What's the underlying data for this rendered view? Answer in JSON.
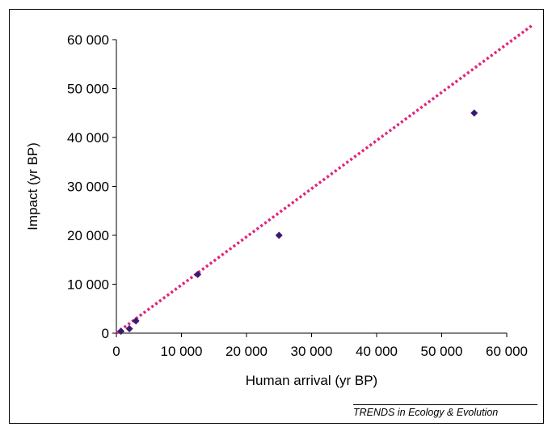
{
  "chart_data": {
    "type": "scatter",
    "xlabel": "Human arrival (yr BP)",
    "ylabel": "Impact (yr BP)",
    "xlim": [
      0,
      60000
    ],
    "ylim": [
      0,
      60000
    ],
    "xticks": [
      0,
      10000,
      20000,
      30000,
      40000,
      50000,
      60000
    ],
    "yticks": [
      0,
      10000,
      20000,
      30000,
      40000,
      50000,
      60000
    ],
    "xtick_labels": [
      "0",
      "10 000",
      "20 000",
      "30 000",
      "40 000",
      "50 000",
      "60 000"
    ],
    "ytick_labels": [
      "0",
      "10 000",
      "20 000",
      "30 000",
      "40 000",
      "50 000",
      "60 000"
    ],
    "grid": false,
    "series": [
      {
        "marker": "diamond",
        "color": "#3b1a6e",
        "points": [
          {
            "x": 700,
            "y": 400
          },
          {
            "x": 2000,
            "y": 900
          },
          {
            "x": 3000,
            "y": 2500
          },
          {
            "x": 12500,
            "y": 12000
          },
          {
            "x": 25000,
            "y": 20000
          },
          {
            "x": 55000,
            "y": 45000
          }
        ]
      }
    ],
    "trendline": {
      "style": "dotted",
      "color": "#e0257d",
      "from": {
        "x": 0,
        "y": 0
      },
      "to": {
        "x": 64000,
        "y": 63000
      }
    }
  },
  "credit": "TRENDS in Ecology & Evolution"
}
